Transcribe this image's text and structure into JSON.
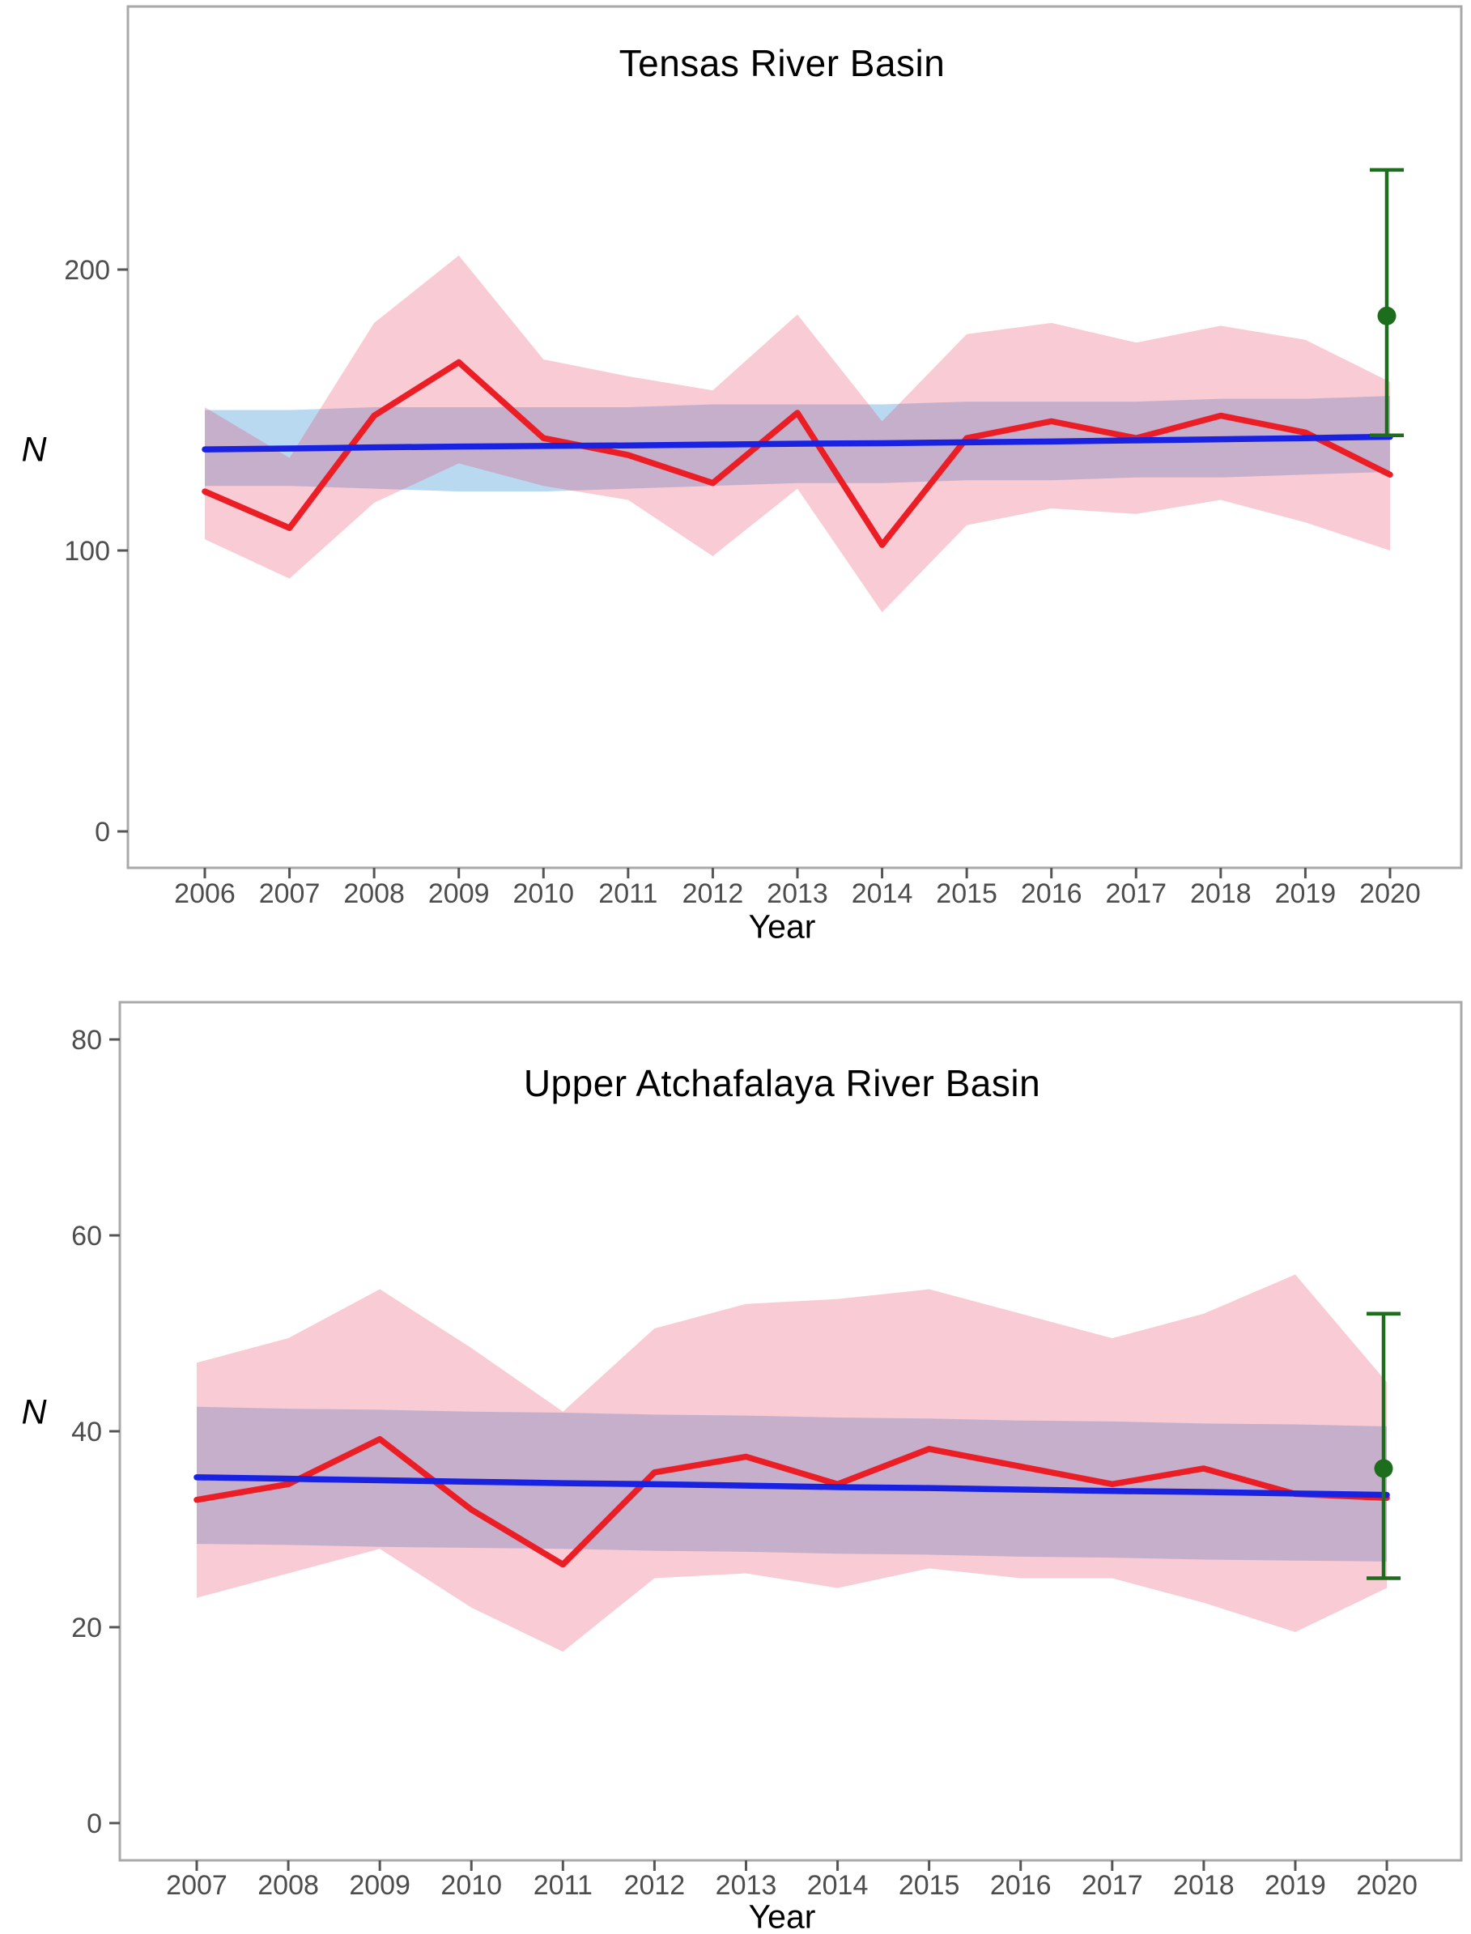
{
  "figure": {
    "background": "#ffffff",
    "description": "Two stacked population-trend charts with observed estimates (red), model trend (blue), confidence ribbons, and a 2020 point estimate with error bar (dark green)."
  },
  "colors": {
    "red_line": "#EB1E26",
    "blue_line": "#1822E0",
    "pink_band_base": "#E94569",
    "blue_band_base": "#0577CC",
    "band_opacity": 0.28,
    "green": "#1C6E1C",
    "axis_text": "#4D4D4D",
    "title_text": "#000000",
    "panel_border": "#A9A9A9",
    "tick_color": "#555555"
  },
  "chart_data": [
    {
      "type": "line",
      "title": "Tensas River Basin",
      "xlabel": "Year",
      "ylabel": "N",
      "x": [
        2006,
        2007,
        2008,
        2009,
        2010,
        2011,
        2012,
        2013,
        2014,
        2015,
        2016,
        2017,
        2018,
        2019,
        2020
      ],
      "yticks": [
        0,
        100,
        200
      ],
      "ylim": [
        -13,
        294
      ],
      "grid": false,
      "legend": "none",
      "series": [
        {
          "name": "observed-estimate",
          "color_key": "red_line",
          "values": [
            121,
            108,
            148,
            167,
            140,
            134,
            124,
            149,
            102,
            140,
            146,
            140,
            148,
            142,
            127
          ]
        },
        {
          "name": "trend",
          "color_key": "blue_line",
          "values": [
            136,
            136.3,
            136.7,
            137,
            137.2,
            137.4,
            137.7,
            138,
            138.2,
            138.5,
            138.8,
            139.2,
            139.6,
            140,
            140.5
          ]
        }
      ],
      "bands": [
        {
          "name": "trend-ci",
          "color_key": "blue_band_base",
          "lower": [
            123,
            123,
            122,
            121,
            121,
            122,
            123,
            124,
            124,
            125,
            125,
            126,
            126,
            127,
            128
          ],
          "upper": [
            150,
            150,
            151,
            151,
            151,
            151,
            152,
            152,
            152,
            153,
            153,
            153,
            154,
            154,
            155
          ]
        },
        {
          "name": "observed-ci",
          "color_key": "pink_band_base",
          "lower": [
            104,
            90,
            117,
            131,
            123,
            118,
            98,
            122,
            78,
            109,
            115,
            113,
            118,
            110,
            100
          ],
          "upper": [
            151,
            133,
            181,
            205,
            168,
            162,
            157,
            184,
            146,
            177,
            181,
            174,
            180,
            175,
            160
          ]
        }
      ],
      "green_point": {
        "x": 2020,
        "estimate": 183.5,
        "lower": 141,
        "upper": 235.5
      }
    },
    {
      "type": "line",
      "title": "Upper Atchafalaya River Basin",
      "xlabel": "Year",
      "ylabel": "N",
      "x": [
        2007,
        2008,
        2009,
        2010,
        2011,
        2012,
        2013,
        2014,
        2015,
        2016,
        2017,
        2018,
        2019,
        2020
      ],
      "yticks": [
        0,
        20,
        40,
        60,
        80
      ],
      "ylim": [
        -3.8,
        83.8
      ],
      "grid": false,
      "legend": "none",
      "series": [
        {
          "name": "observed-estimate",
          "color_key": "red_line",
          "values": [
            33,
            34.6,
            39.2,
            32,
            26.4,
            35.8,
            37.4,
            34.6,
            38.2,
            36.4,
            34.6,
            36.2,
            33.6,
            33.2
          ]
        },
        {
          "name": "trend",
          "color_key": "blue_line",
          "values": [
            35.3,
            35.15,
            35,
            34.85,
            34.7,
            34.6,
            34.45,
            34.3,
            34.2,
            34.05,
            33.9,
            33.8,
            33.65,
            33.5
          ]
        }
      ],
      "bands": [
        {
          "name": "trend-ci",
          "color_key": "blue_band_base",
          "lower": [
            28.5,
            28.4,
            28.2,
            28.1,
            28,
            27.8,
            27.7,
            27.5,
            27.4,
            27.2,
            27.1,
            26.9,
            26.8,
            26.7
          ],
          "upper": [
            42.5,
            42.3,
            42.2,
            42,
            41.9,
            41.7,
            41.6,
            41.4,
            41.3,
            41.1,
            41,
            40.8,
            40.7,
            40.5
          ]
        },
        {
          "name": "observed-ci",
          "color_key": "pink_band_base",
          "lower": [
            23,
            25.5,
            28,
            22,
            17.5,
            25,
            25.5,
            24,
            26,
            25,
            25,
            22.5,
            19.5,
            24
          ],
          "upper": [
            47,
            49.5,
            54.5,
            48.5,
            42,
            50.5,
            53,
            53.5,
            54.5,
            52,
            49.5,
            52,
            56,
            45
          ]
        }
      ],
      "green_point": {
        "x": 2020,
        "estimate": 36.2,
        "lower": 25,
        "upper": 52
      }
    }
  ]
}
